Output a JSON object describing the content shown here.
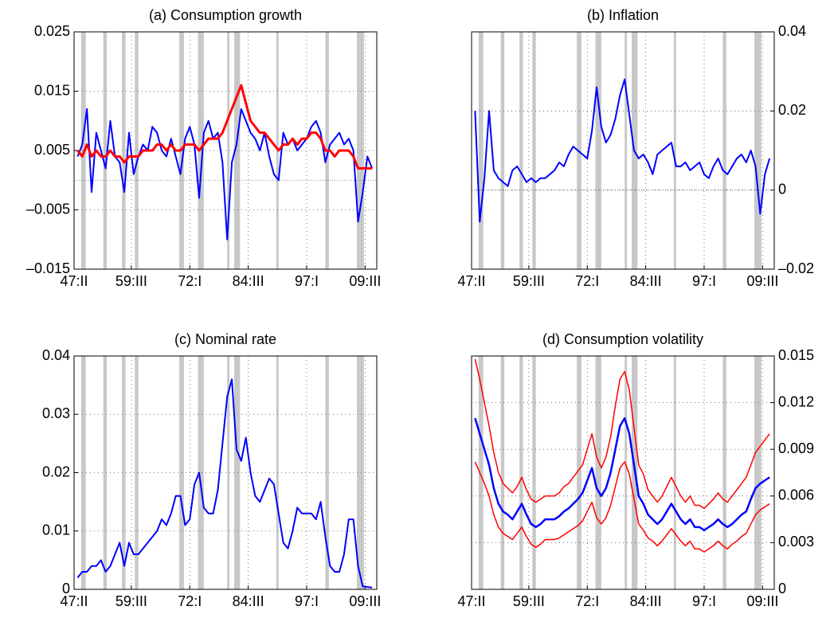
{
  "chart_data": [
    {
      "type": "line",
      "title": "(a) Consumption growth",
      "yaxis_side": "left",
      "grid": true,
      "hline": 0,
      "xlim": [
        1947.25,
        2012
      ],
      "xticks": [
        {
          "value": 1947.25,
          "label": "47:II"
        },
        {
          "value": 1959.5,
          "label": "59:III"
        },
        {
          "value": 1972.0,
          "label": "72:I"
        },
        {
          "value": 1984.5,
          "label": "84:III"
        },
        {
          "value": 1997.0,
          "label": "97:I"
        },
        {
          "value": 2009.5,
          "label": "09:III"
        }
      ],
      "ylim": [
        -0.015,
        0.025
      ],
      "yticks": [
        {
          "value": -0.015,
          "label": "–0.015"
        },
        {
          "value": -0.005,
          "label": "–0.005"
        },
        0.005,
        0.015,
        0.025
      ],
      "recessions": [
        [
          1948.75,
          1949.75
        ],
        [
          1953.5,
          1954.25
        ],
        [
          1957.5,
          1958.25
        ],
        [
          1960.25,
          1961.0
        ],
        [
          1969.75,
          1970.75
        ],
        [
          1973.75,
          1975.0
        ],
        [
          1980.0,
          1980.5
        ],
        [
          1981.5,
          1982.75
        ],
        [
          1990.5,
          1991.0
        ],
        [
          2001.0,
          2001.75
        ],
        [
          2007.75,
          2009.25
        ]
      ],
      "x": [
        1948,
        1949,
        1950,
        1951,
        1952,
        1953,
        1954,
        1955,
        1956,
        1957,
        1958,
        1959,
        1960,
        1961,
        1962,
        1963,
        1964,
        1965,
        1966,
        1967,
        1968,
        1969,
        1970,
        1971,
        1972,
        1973,
        1974,
        1975,
        1976,
        1977,
        1978,
        1979,
        1980,
        1981,
        1982,
        1983,
        1984,
        1985,
        1986,
        1987,
        1988,
        1989,
        1990,
        1991,
        1992,
        1993,
        1994,
        1995,
        1996,
        1997,
        1998,
        1999,
        2000,
        2001,
        2002,
        2003,
        2004,
        2005,
        2006,
        2007,
        2008,
        2009,
        2010,
        2011
      ],
      "series": [
        {
          "color": "#0000ff",
          "line_width": 2,
          "values": [
            0.004,
            0.006,
            0.012,
            -0.002,
            0.008,
            0.005,
            0.002,
            0.01,
            0.004,
            0.003,
            -0.002,
            0.008,
            0.001,
            0.004,
            0.006,
            0.005,
            0.009,
            0.008,
            0.005,
            0.004,
            0.007,
            0.004,
            0.001,
            0.007,
            0.009,
            0.006,
            -0.003,
            0.008,
            0.01,
            0.007,
            0.008,
            0.003,
            -0.01,
            0.003,
            0.006,
            0.012,
            0.01,
            0.008,
            0.007,
            0.005,
            0.008,
            0.004,
            0.001,
            0.0,
            0.008,
            0.006,
            0.007,
            0.005,
            0.006,
            0.007,
            0.009,
            0.01,
            0.008,
            0.003,
            0.006,
            0.007,
            0.008,
            0.006,
            0.007,
            0.005,
            -0.007,
            -0.002,
            0.004,
            0.002
          ]
        },
        {
          "color": "#ff0000",
          "line_width": 3,
          "values": [
            0.005,
            0.004,
            0.006,
            0.004,
            0.005,
            0.004,
            0.004,
            0.005,
            0.004,
            0.004,
            0.003,
            0.004,
            0.004,
            0.004,
            0.005,
            0.005,
            0.005,
            0.006,
            0.006,
            0.005,
            0.006,
            0.005,
            0.005,
            0.006,
            0.006,
            0.006,
            0.005,
            0.006,
            0.007,
            0.007,
            0.007,
            0.008,
            0.01,
            0.012,
            0.014,
            0.016,
            0.013,
            0.01,
            0.009,
            0.008,
            0.008,
            0.007,
            0.006,
            0.005,
            0.006,
            0.006,
            0.007,
            0.006,
            0.007,
            0.007,
            0.008,
            0.008,
            0.007,
            0.005,
            0.005,
            0.004,
            0.005,
            0.005,
            0.005,
            0.004,
            0.002,
            0.002,
            0.002,
            0.002
          ]
        }
      ]
    },
    {
      "type": "line",
      "title": "(b) Inflation",
      "yaxis_side": "right",
      "grid": true,
      "hline": 0,
      "xlim": [
        1947.25,
        2012
      ],
      "xticks": [
        {
          "value": 1947.25,
          "label": "47:II"
        },
        {
          "value": 1959.5,
          "label": "59:III"
        },
        {
          "value": 1972.0,
          "label": "72:I"
        },
        {
          "value": 1984.5,
          "label": "84:III"
        },
        {
          "value": 1997.0,
          "label": "97:I"
        },
        {
          "value": 2009.5,
          "label": "09:III"
        }
      ],
      "ylim": [
        -0.02,
        0.04
      ],
      "yticks": [
        {
          "value": -0.02,
          "label": "–0.02"
        },
        0,
        0.02,
        0.04
      ],
      "recessions": [
        [
          1948.75,
          1949.75
        ],
        [
          1953.5,
          1954.25
        ],
        [
          1957.5,
          1958.25
        ],
        [
          1960.25,
          1961.0
        ],
        [
          1969.75,
          1970.75
        ],
        [
          1973.75,
          1975.0
        ],
        [
          1980.0,
          1980.5
        ],
        [
          1981.5,
          1982.75
        ],
        [
          1990.5,
          1991.0
        ],
        [
          2001.0,
          2001.75
        ],
        [
          2007.75,
          2009.25
        ]
      ],
      "x": [
        1948,
        1949,
        1950,
        1951,
        1952,
        1953,
        1954,
        1955,
        1956,
        1957,
        1958,
        1959,
        1960,
        1961,
        1962,
        1963,
        1964,
        1965,
        1966,
        1967,
        1968,
        1969,
        1970,
        1971,
        1972,
        1973,
        1974,
        1975,
        1976,
        1977,
        1978,
        1979,
        1980,
        1981,
        1982,
        1983,
        1984,
        1985,
        1986,
        1987,
        1988,
        1989,
        1990,
        1991,
        1992,
        1993,
        1994,
        1995,
        1996,
        1997,
        1998,
        1999,
        2000,
        2001,
        2002,
        2003,
        2004,
        2005,
        2006,
        2007,
        2008,
        2009,
        2010,
        2011
      ],
      "series": [
        {
          "color": "#0000ff",
          "line_width": 2,
          "values": [
            0.02,
            -0.008,
            0.003,
            0.02,
            0.005,
            0.003,
            0.002,
            0.001,
            0.005,
            0.006,
            0.004,
            0.002,
            0.003,
            0.002,
            0.003,
            0.003,
            0.004,
            0.005,
            0.007,
            0.006,
            0.009,
            0.011,
            0.01,
            0.009,
            0.008,
            0.015,
            0.026,
            0.016,
            0.012,
            0.014,
            0.018,
            0.024,
            0.028,
            0.019,
            0.01,
            0.008,
            0.009,
            0.007,
            0.004,
            0.009,
            0.01,
            0.011,
            0.012,
            0.006,
            0.006,
            0.007,
            0.005,
            0.006,
            0.007,
            0.004,
            0.003,
            0.006,
            0.008,
            0.005,
            0.004,
            0.006,
            0.008,
            0.009,
            0.007,
            0.01,
            0.006,
            -0.006,
            0.004,
            0.008
          ]
        }
      ]
    },
    {
      "type": "line",
      "title": "(c) Nominal rate",
      "yaxis_side": "left",
      "grid": true,
      "xlim": [
        1947.25,
        2012
      ],
      "xticks": [
        {
          "value": 1947.25,
          "label": "47:II"
        },
        {
          "value": 1959.5,
          "label": "59:III"
        },
        {
          "value": 1972.0,
          "label": "72:I"
        },
        {
          "value": 1984.5,
          "label": "84:III"
        },
        {
          "value": 1997.0,
          "label": "97:I"
        },
        {
          "value": 2009.5,
          "label": "09:III"
        }
      ],
      "ylim": [
        0,
        0.04
      ],
      "yticks": [
        0,
        0.01,
        0.02,
        0.03,
        0.04
      ],
      "recessions": [
        [
          1948.75,
          1949.75
        ],
        [
          1953.5,
          1954.25
        ],
        [
          1957.5,
          1958.25
        ],
        [
          1960.25,
          1961.0
        ],
        [
          1969.75,
          1970.75
        ],
        [
          1973.75,
          1975.0
        ],
        [
          1980.0,
          1980.5
        ],
        [
          1981.5,
          1982.75
        ],
        [
          1990.5,
          1991.0
        ],
        [
          2001.0,
          2001.75
        ],
        [
          2007.75,
          2009.25
        ]
      ],
      "x": [
        1948,
        1949,
        1950,
        1951,
        1952,
        1953,
        1954,
        1955,
        1956,
        1957,
        1958,
        1959,
        1960,
        1961,
        1962,
        1963,
        1964,
        1965,
        1966,
        1967,
        1968,
        1969,
        1970,
        1971,
        1972,
        1973,
        1974,
        1975,
        1976,
        1977,
        1978,
        1979,
        1980,
        1981,
        1982,
        1983,
        1984,
        1985,
        1986,
        1987,
        1988,
        1989,
        1990,
        1991,
        1992,
        1993,
        1994,
        1995,
        1996,
        1997,
        1998,
        1999,
        2000,
        2001,
        2002,
        2003,
        2004,
        2005,
        2006,
        2007,
        2008,
        2009,
        2010,
        2011
      ],
      "series": [
        {
          "color": "#0000ff",
          "line_width": 2,
          "values": [
            0.002,
            0.003,
            0.003,
            0.004,
            0.004,
            0.005,
            0.003,
            0.004,
            0.006,
            0.008,
            0.004,
            0.008,
            0.006,
            0.006,
            0.007,
            0.008,
            0.009,
            0.01,
            0.012,
            0.011,
            0.013,
            0.016,
            0.016,
            0.011,
            0.012,
            0.018,
            0.02,
            0.014,
            0.013,
            0.013,
            0.017,
            0.025,
            0.033,
            0.036,
            0.024,
            0.022,
            0.026,
            0.02,
            0.016,
            0.015,
            0.017,
            0.019,
            0.018,
            0.013,
            0.008,
            0.007,
            0.01,
            0.014,
            0.013,
            0.013,
            0.013,
            0.012,
            0.015,
            0.009,
            0.004,
            0.003,
            0.003,
            0.006,
            0.012,
            0.012,
            0.004,
            0.0005,
            0.0004,
            0.0003
          ]
        }
      ]
    },
    {
      "type": "line",
      "title": "(d) Consumption volatility",
      "yaxis_side": "right",
      "grid": true,
      "xlim": [
        1947.25,
        2012
      ],
      "xticks": [
        {
          "value": 1947.25,
          "label": "47:II"
        },
        {
          "value": 1959.5,
          "label": "59:III"
        },
        {
          "value": 1972.0,
          "label": "72:I"
        },
        {
          "value": 1984.5,
          "label": "84:III"
        },
        {
          "value": 1997.0,
          "label": "97:I"
        },
        {
          "value": 2009.5,
          "label": "09:III"
        }
      ],
      "ylim": [
        0,
        0.015
      ],
      "yticks": [
        0,
        0.003,
        0.006,
        0.009,
        0.012,
        0.015
      ],
      "recessions": [
        [
          1948.75,
          1949.75
        ],
        [
          1953.5,
          1954.25
        ],
        [
          1957.5,
          1958.25
        ],
        [
          1960.25,
          1961.0
        ],
        [
          1969.75,
          1970.75
        ],
        [
          1973.75,
          1975.0
        ],
        [
          1980.0,
          1980.5
        ],
        [
          1981.5,
          1982.75
        ],
        [
          1990.5,
          1991.0
        ],
        [
          2001.0,
          2001.75
        ],
        [
          2007.75,
          2009.25
        ]
      ],
      "x": [
        1948,
        1949,
        1950,
        1951,
        1952,
        1953,
        1954,
        1955,
        1956,
        1957,
        1958,
        1959,
        1960,
        1961,
        1962,
        1963,
        1964,
        1965,
        1966,
        1967,
        1968,
        1969,
        1970,
        1971,
        1972,
        1973,
        1974,
        1975,
        1976,
        1977,
        1978,
        1979,
        1980,
        1981,
        1982,
        1983,
        1984,
        1985,
        1986,
        1987,
        1988,
        1989,
        1990,
        1991,
        1992,
        1993,
        1994,
        1995,
        1996,
        1997,
        1998,
        1999,
        2000,
        2001,
        2002,
        2003,
        2004,
        2005,
        2006,
        2007,
        2008,
        2009,
        2010,
        2011
      ],
      "series": [
        {
          "color": "#ff0000",
          "line_width": 1.5,
          "values": [
            0.0148,
            0.0135,
            0.012,
            0.0105,
            0.0088,
            0.0075,
            0.0068,
            0.0065,
            0.0062,
            0.0066,
            0.0072,
            0.0064,
            0.0058,
            0.0056,
            0.0058,
            0.006,
            0.006,
            0.006,
            0.0062,
            0.0066,
            0.0068,
            0.0072,
            0.0076,
            0.008,
            0.009,
            0.01,
            0.0085,
            0.0078,
            0.0085,
            0.0098,
            0.0118,
            0.0135,
            0.014,
            0.0128,
            0.0104,
            0.008,
            0.0074,
            0.0064,
            0.006,
            0.0056,
            0.006,
            0.0066,
            0.0072,
            0.0066,
            0.006,
            0.0056,
            0.006,
            0.0054,
            0.0054,
            0.0052,
            0.0055,
            0.0058,
            0.0062,
            0.0058,
            0.0056,
            0.006,
            0.0064,
            0.0068,
            0.0072,
            0.008,
            0.0088,
            0.0092,
            0.0096,
            0.01
          ]
        },
        {
          "color": "#ff0000",
          "line_width": 1.5,
          "values": [
            0.0082,
            0.0075,
            0.0068,
            0.006,
            0.0048,
            0.004,
            0.0036,
            0.0034,
            0.0032,
            0.0036,
            0.004,
            0.0034,
            0.0029,
            0.0027,
            0.0029,
            0.0032,
            0.0032,
            0.0032,
            0.0033,
            0.0035,
            0.0037,
            0.0039,
            0.0041,
            0.0044,
            0.005,
            0.0056,
            0.0046,
            0.0042,
            0.0046,
            0.0054,
            0.0066,
            0.0078,
            0.0082,
            0.0074,
            0.0058,
            0.0042,
            0.0038,
            0.0033,
            0.0031,
            0.0028,
            0.0031,
            0.0035,
            0.0039,
            0.0035,
            0.0031,
            0.0028,
            0.0031,
            0.0026,
            0.0026,
            0.0024,
            0.0026,
            0.0028,
            0.0031,
            0.0028,
            0.0026,
            0.0029,
            0.0031,
            0.0034,
            0.0036,
            0.0042,
            0.0048,
            0.0051,
            0.0053,
            0.0055
          ]
        },
        {
          "color": "#0000ff",
          "line_width": 2.5,
          "values": [
            0.011,
            0.01,
            0.009,
            0.008,
            0.0065,
            0.0055,
            0.005,
            0.0048,
            0.0045,
            0.005,
            0.0055,
            0.0048,
            0.0042,
            0.004,
            0.0042,
            0.0045,
            0.0045,
            0.0045,
            0.0047,
            0.005,
            0.0052,
            0.0055,
            0.0058,
            0.0062,
            0.007,
            0.0078,
            0.0065,
            0.006,
            0.0065,
            0.0075,
            0.009,
            0.0105,
            0.011,
            0.01,
            0.008,
            0.006,
            0.0055,
            0.0048,
            0.0045,
            0.0042,
            0.0045,
            0.005,
            0.0055,
            0.005,
            0.0045,
            0.0042,
            0.0045,
            0.004,
            0.004,
            0.0038,
            0.004,
            0.0042,
            0.0045,
            0.0042,
            0.004,
            0.0042,
            0.0045,
            0.0048,
            0.005,
            0.0058,
            0.0065,
            0.0068,
            0.007,
            0.0072
          ]
        }
      ]
    }
  ]
}
